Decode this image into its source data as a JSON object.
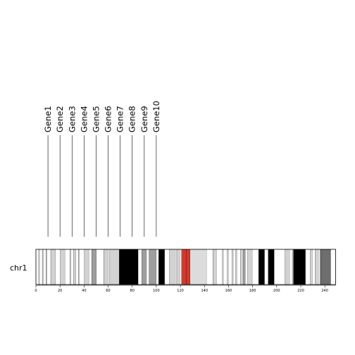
{
  "chart_data": {
    "type": "ideogram",
    "chromosome": "chr1",
    "x_ticks": [
      "0",
      "20",
      "40",
      "60",
      "80",
      "100",
      "120",
      "140",
      "160",
      "180",
      "200",
      "220",
      "240"
    ],
    "xlim_mb": [
      0,
      249
    ],
    "genes": [
      {
        "name": "Gene1",
        "pos_mb": 10
      },
      {
        "name": "Gene2",
        "pos_mb": 20
      },
      {
        "name": "Gene3",
        "pos_mb": 30
      },
      {
        "name": "Gene4",
        "pos_mb": 40
      },
      {
        "name": "Gene5",
        "pos_mb": 50
      },
      {
        "name": "Gene6",
        "pos_mb": 60
      },
      {
        "name": "Gene7",
        "pos_mb": 70
      },
      {
        "name": "Gene8",
        "pos_mb": 80
      },
      {
        "name": "Gene9",
        "pos_mb": 90
      },
      {
        "name": "Gene10",
        "pos_mb": 100
      }
    ],
    "band_colors": {
      "gneg": "#ffffff",
      "gpos25": "#d2d2d2",
      "gpos50": "#9e9e9e",
      "gpos75": "#6e6e6e",
      "gpos100": "#000000",
      "acen": "#d6372c",
      "gvar": "#dcdcdc"
    },
    "bands": [
      {
        "start": 0,
        "end": 2.3,
        "stain": "gneg"
      },
      {
        "start": 2.3,
        "end": 3.3,
        "stain": "gpos25"
      },
      {
        "start": 3.3,
        "end": 5.3,
        "stain": "gneg"
      },
      {
        "start": 5.3,
        "end": 6.3,
        "stain": "gpos25"
      },
      {
        "start": 6.3,
        "end": 8.3,
        "stain": "gneg"
      },
      {
        "start": 8.3,
        "end": 9.3,
        "stain": "gpos25"
      },
      {
        "start": 9.3,
        "end": 12.3,
        "stain": "gneg"
      },
      {
        "start": 12.3,
        "end": 16.3,
        "stain": "gpos25"
      },
      {
        "start": 16.3,
        "end": 20.3,
        "stain": "gneg"
      },
      {
        "start": 20.3,
        "end": 24.3,
        "stain": "gpos25"
      },
      {
        "start": 24.3,
        "end": 28.3,
        "stain": "gneg"
      },
      {
        "start": 28.3,
        "end": 29.3,
        "stain": "gpos25"
      },
      {
        "start": 29.3,
        "end": 31.3,
        "stain": "gneg"
      },
      {
        "start": 31.3,
        "end": 33.3,
        "stain": "gpos25"
      },
      {
        "start": 33.3,
        "end": 35.3,
        "stain": "gneg"
      },
      {
        "start": 35.3,
        "end": 36.3,
        "stain": "gpos25"
      },
      {
        "start": 36.3,
        "end": 40.3,
        "stain": "gneg"
      },
      {
        "start": 40.3,
        "end": 44.3,
        "stain": "gpos25"
      },
      {
        "start": 44.3,
        "end": 46.3,
        "stain": "gneg"
      },
      {
        "start": 46.3,
        "end": 50.3,
        "stain": "gpos50"
      },
      {
        "start": 50.3,
        "end": 56.3,
        "stain": "gneg"
      },
      {
        "start": 56.3,
        "end": 60.3,
        "stain": "gpos25"
      },
      {
        "start": 60.3,
        "end": 61.3,
        "stain": "gneg"
      },
      {
        "start": 61.3,
        "end": 69.3,
        "stain": "gpos25"
      },
      {
        "start": 69.3,
        "end": 85,
        "stain": "gpos100"
      },
      {
        "start": 85,
        "end": 88,
        "stain": "gneg"
      },
      {
        "start": 88,
        "end": 92,
        "stain": "gpos50"
      },
      {
        "start": 92,
        "end": 94,
        "stain": "gneg"
      },
      {
        "start": 94,
        "end": 100,
        "stain": "gpos50"
      },
      {
        "start": 100,
        "end": 102,
        "stain": "gneg"
      },
      {
        "start": 102,
        "end": 107,
        "stain": "gpos100"
      },
      {
        "start": 107,
        "end": 111,
        "stain": "gneg"
      },
      {
        "start": 111,
        "end": 116,
        "stain": "gpos25"
      },
      {
        "start": 116,
        "end": 117,
        "stain": "gneg"
      },
      {
        "start": 117,
        "end": 120,
        "stain": "gpos25"
      },
      {
        "start": 120,
        "end": 121,
        "stain": "gneg"
      },
      {
        "start": 121,
        "end": 125,
        "stain": "acen"
      },
      {
        "start": 125,
        "end": 128,
        "stain": "acen"
      },
      {
        "start": 128,
        "end": 142,
        "stain": "gvar"
      },
      {
        "start": 142,
        "end": 147,
        "stain": "gneg"
      },
      {
        "start": 147,
        "end": 150,
        "stain": "gpos25"
      },
      {
        "start": 150,
        "end": 155,
        "stain": "gneg"
      },
      {
        "start": 155,
        "end": 156,
        "stain": "gpos25"
      },
      {
        "start": 156,
        "end": 159,
        "stain": "gneg"
      },
      {
        "start": 159,
        "end": 160,
        "stain": "gpos25"
      },
      {
        "start": 160,
        "end": 163,
        "stain": "gneg"
      },
      {
        "start": 163,
        "end": 164,
        "stain": "gpos25"
      },
      {
        "start": 164,
        "end": 166,
        "stain": "gneg"
      },
      {
        "start": 166,
        "end": 167,
        "stain": "gpos25"
      },
      {
        "start": 167,
        "end": 170,
        "stain": "gneg"
      },
      {
        "start": 170,
        "end": 171,
        "stain": "gpos25"
      },
      {
        "start": 171,
        "end": 172,
        "stain": "gneg"
      },
      {
        "start": 172,
        "end": 174,
        "stain": "gpos50"
      },
      {
        "start": 174,
        "end": 176,
        "stain": "gneg"
      },
      {
        "start": 176,
        "end": 180,
        "stain": "gpos25"
      },
      {
        "start": 180,
        "end": 185,
        "stain": "gneg"
      },
      {
        "start": 185,
        "end": 190,
        "stain": "gpos100"
      },
      {
        "start": 190,
        "end": 193,
        "stain": "gneg"
      },
      {
        "start": 193,
        "end": 198,
        "stain": "gpos100"
      },
      {
        "start": 198,
        "end": 207,
        "stain": "gneg"
      },
      {
        "start": 207,
        "end": 211,
        "stain": "gpos25"
      },
      {
        "start": 211,
        "end": 213,
        "stain": "gneg"
      },
      {
        "start": 213,
        "end": 214,
        "stain": "gpos25"
      },
      {
        "start": 214,
        "end": 224,
        "stain": "gpos100"
      },
      {
        "start": 224,
        "end": 228,
        "stain": "gneg"
      },
      {
        "start": 228,
        "end": 230,
        "stain": "gpos25"
      },
      {
        "start": 230,
        "end": 232,
        "stain": "gneg"
      },
      {
        "start": 232,
        "end": 235,
        "stain": "gpos25"
      },
      {
        "start": 235,
        "end": 236,
        "stain": "gneg"
      },
      {
        "start": 236,
        "end": 237,
        "stain": "gpos50"
      },
      {
        "start": 237,
        "end": 245,
        "stain": "gpos75"
      },
      {
        "start": 245,
        "end": 249,
        "stain": "gneg"
      }
    ]
  }
}
